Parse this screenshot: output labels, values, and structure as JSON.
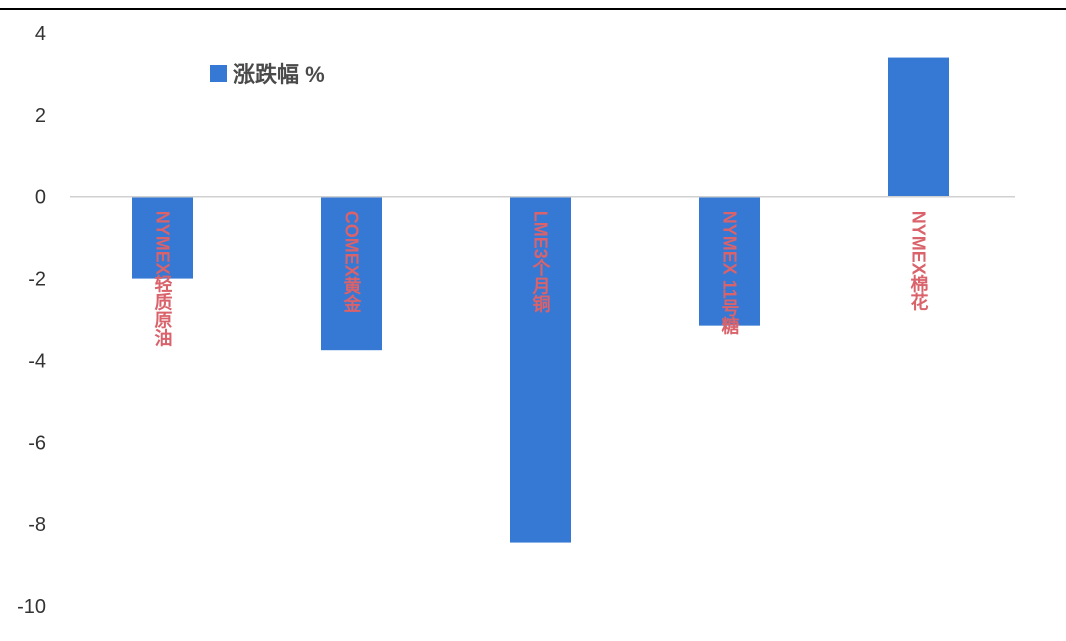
{
  "chart_data": {
    "type": "bar",
    "categories": [
      "NYMEX轻质原油",
      "COMEX黄金",
      "LME3个月铜",
      "NYMEX 11号糖",
      "NYMEX棉花"
    ],
    "series": [
      {
        "name": "涨跌幅 %",
        "values": [
          -2.0,
          -3.75,
          -8.45,
          -3.15,
          3.4
        ]
      }
    ],
    "ylim": [
      -10,
      4
    ],
    "yticks": [
      4,
      2,
      0,
      -2,
      -4,
      -6,
      -8,
      -10
    ],
    "grid": false,
    "legend_position": "top-left",
    "colors": {
      "bar": "#3579d4",
      "category_label": "#d9626b",
      "axis_line": "#d0d0d0",
      "top_border": "#000000"
    }
  }
}
